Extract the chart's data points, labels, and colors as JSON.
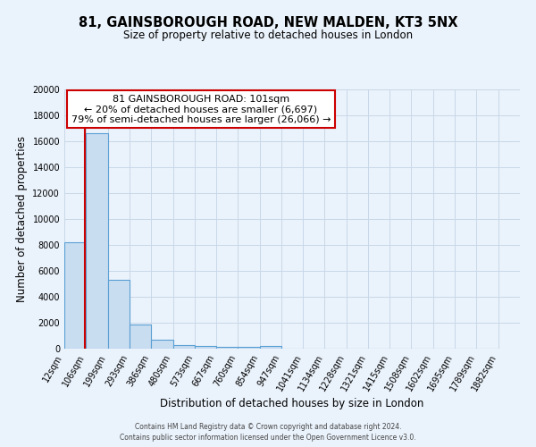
{
  "title": "81, GAINSBOROUGH ROAD, NEW MALDEN, KT3 5NX",
  "subtitle": "Size of property relative to detached houses in London",
  "xlabel": "Distribution of detached houses by size in London",
  "ylabel": "Number of detached properties",
  "bin_labels": [
    "12sqm",
    "106sqm",
    "199sqm",
    "293sqm",
    "386sqm",
    "480sqm",
    "573sqm",
    "667sqm",
    "760sqm",
    "854sqm",
    "947sqm",
    "1041sqm",
    "1134sqm",
    "1228sqm",
    "1321sqm",
    "1415sqm",
    "1508sqm",
    "1602sqm",
    "1695sqm",
    "1789sqm",
    "1882sqm"
  ],
  "bin_edges": [
    12,
    106,
    199,
    293,
    386,
    480,
    573,
    667,
    760,
    854,
    947,
    1041,
    1134,
    1228,
    1321,
    1415,
    1508,
    1602,
    1695,
    1789,
    1882
  ],
  "bar_heights": [
    8200,
    16600,
    5300,
    1850,
    700,
    310,
    230,
    160,
    130,
    200,
    0,
    0,
    0,
    0,
    0,
    0,
    0,
    0,
    0,
    0
  ],
  "bar_color": "#c9ddf0",
  "bar_edge_color": "#5a9fd4",
  "property_value": 101,
  "vline_color": "#cc0000",
  "annotation_title": "81 GAINSBOROUGH ROAD: 101sqm",
  "annotation_line1": "← 20% of detached houses are smaller (6,697)",
  "annotation_line2": "79% of semi-detached houses are larger (26,066) →",
  "annotation_box_color": "#ffffff",
  "annotation_box_edge": "#cc0000",
  "ylim": [
    0,
    20000
  ],
  "yticks": [
    0,
    2000,
    4000,
    6000,
    8000,
    10000,
    12000,
    14000,
    16000,
    18000,
    20000
  ],
  "footer1": "Contains HM Land Registry data © Crown copyright and database right 2024.",
  "footer2": "Contains public sector information licensed under the Open Government Licence v3.0.",
  "bg_color": "#eaf2fb",
  "grid_color": "#c8d8e8",
  "title_fontsize": 10.5,
  "subtitle_fontsize": 8.5,
  "axis_label_fontsize": 8.5,
  "tick_fontsize": 7,
  "annotation_fontsize": 8
}
